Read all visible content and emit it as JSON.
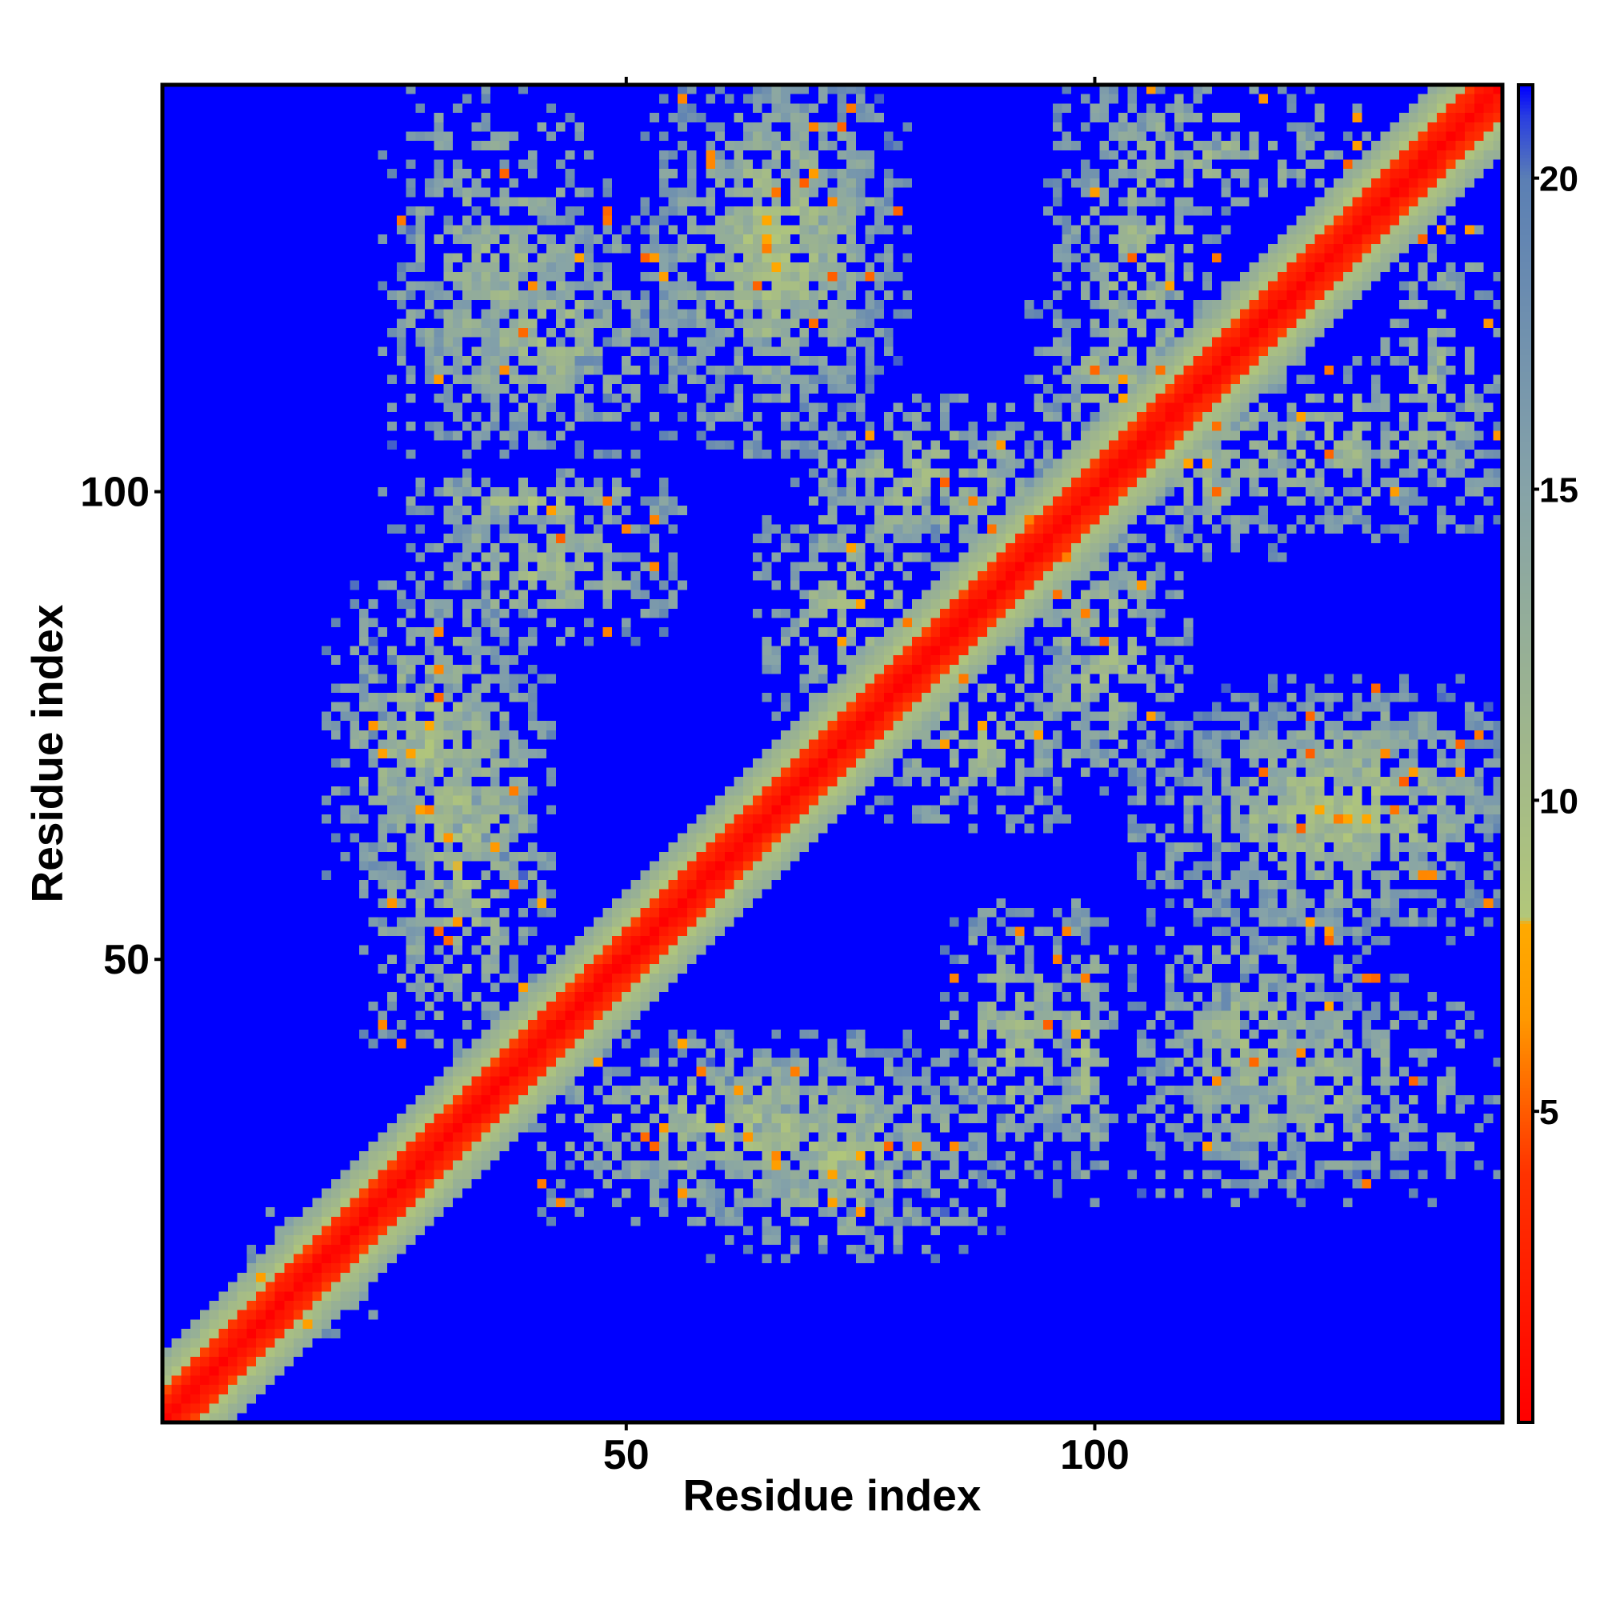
{
  "chart_data": {
    "type": "heatmap",
    "title": "",
    "xlabel": "Residue index",
    "ylabel": "Residue index",
    "n_residues": 143,
    "xlim": [
      1,
      143
    ],
    "ylim": [
      1,
      143
    ],
    "x_ticks": [
      50,
      100
    ],
    "x_tick_labels": [
      "50",
      "100"
    ],
    "y_ticks": [
      50,
      100
    ],
    "y_tick_labels": [
      "50",
      "100"
    ],
    "colorbar": {
      "range": [
        0,
        21.5
      ],
      "ticks": [
        5,
        10,
        15,
        20
      ],
      "tick_labels": [
        "5",
        "10",
        "15",
        "20"
      ],
      "stops": [
        {
          "value": 0.0,
          "color": "#ff0000"
        },
        {
          "value": 4.0,
          "color": "#ff3300"
        },
        {
          "value": 6.5,
          "color": "#ff9900"
        },
        {
          "value": 8.0,
          "color": "#ffaa00"
        },
        {
          "value": 8.1,
          "color": "#b2c77a"
        },
        {
          "value": 11.0,
          "color": "#9fb68c"
        },
        {
          "value": 15.0,
          "color": "#86a3a8"
        },
        {
          "value": 20.0,
          "color": "#5b7fb4"
        },
        {
          "value": 21.0,
          "color": "#2a3fe0"
        },
        {
          "value": 21.5,
          "color": "#0000ff"
        }
      ]
    },
    "background_color": "#0000ff",
    "diagonal_band_halfwidth": 7,
    "contact_blocks": [
      {
        "x": [
          18,
          40
        ],
        "y": [
          58,
          90
        ],
        "density": 0.72,
        "strength": 0.55
      },
      {
        "x": [
          24,
          56
        ],
        "y": [
          96,
          102
        ],
        "density": 0.68,
        "strength": 0.5
      },
      {
        "x": [
          26,
          56
        ],
        "y": [
          104,
          130
        ],
        "density": 0.6,
        "strength": 0.45
      },
      {
        "x": [
          52,
          80
        ],
        "y": [
          112,
          143
        ],
        "density": 0.66,
        "strength": 0.6
      },
      {
        "x": [
          64,
          84
        ],
        "y": [
          76,
          100
        ],
        "density": 0.62,
        "strength": 0.5
      },
      {
        "x": [
          40,
          84
        ],
        "y": [
          22,
          42
        ],
        "density": 0.7,
        "strength": 0.55
      },
      {
        "x": [
          84,
          100
        ],
        "y": [
          26,
          56
        ],
        "density": 0.65,
        "strength": 0.5
      },
      {
        "x": [
          92,
          110
        ],
        "y": [
          68,
          98
        ],
        "density": 0.6,
        "strength": 0.5
      },
      {
        "x": [
          93,
          110
        ],
        "y": [
          98,
          122
        ],
        "density": 0.55,
        "strength": 0.45
      },
      {
        "x": [
          94,
          130
        ],
        "y": [
          130,
          143
        ],
        "density": 0.5,
        "strength": 0.4
      },
      {
        "x": [
          105,
          143
        ],
        "y": [
          96,
          114
        ],
        "density": 0.55,
        "strength": 0.45
      },
      {
        "x": [
          104,
          143
        ],
        "y": [
          54,
          78
        ],
        "density": 0.66,
        "strength": 0.55
      },
      {
        "x": [
          104,
          143
        ],
        "y": [
          24,
          48
        ],
        "density": 0.5,
        "strength": 0.4
      },
      {
        "x": [
          10,
          24
        ],
        "y": [
          10,
          24
        ],
        "density": 0.4,
        "strength": 0.35
      }
    ]
  }
}
